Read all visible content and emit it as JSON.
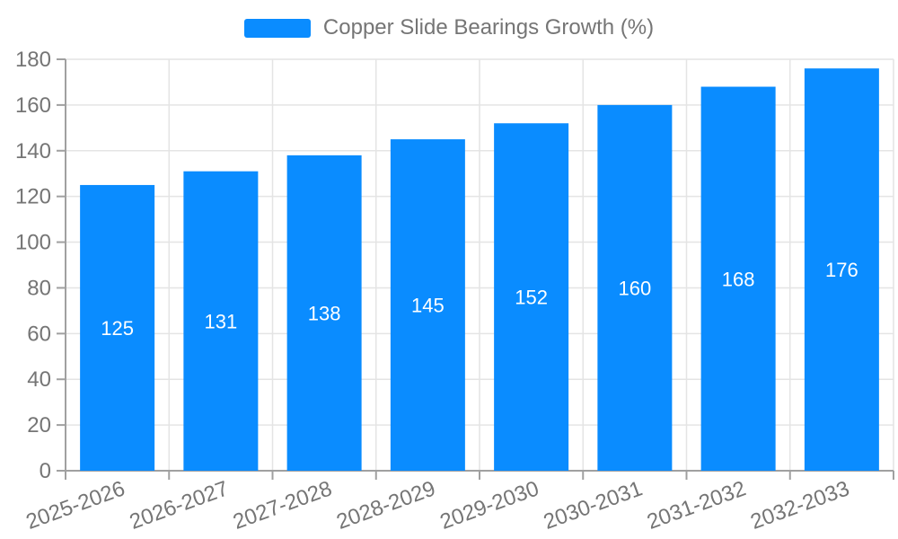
{
  "chart_data": {
    "type": "bar",
    "title": "Copper Slide Bearings Growth (%)",
    "categories": [
      "2025-2026",
      "2026-2027",
      "2027-2028",
      "2028-2029",
      "2029-2030",
      "2030-2031",
      "2031-2032",
      "2032-2033"
    ],
    "values": [
      125,
      131,
      138,
      145,
      152,
      160,
      168,
      176
    ],
    "xlabel": "",
    "ylabel": "",
    "ylim": [
      0,
      180
    ],
    "ytick_step": 20,
    "ytick_labels": [
      "0",
      "20",
      "40",
      "60",
      "80",
      "100",
      "120",
      "140",
      "160",
      "180"
    ],
    "grid": true,
    "legend_position": "top-center",
    "value_label_position": "inside-center",
    "xtick_label_rotation_deg": -20,
    "colors": {
      "bar": "#0a8cff",
      "grid": "#e4e4e4",
      "axis": "#a0a0a0",
      "tick_text": "#757575",
      "value_label": "#ffffff",
      "background": "#ffffff"
    }
  }
}
